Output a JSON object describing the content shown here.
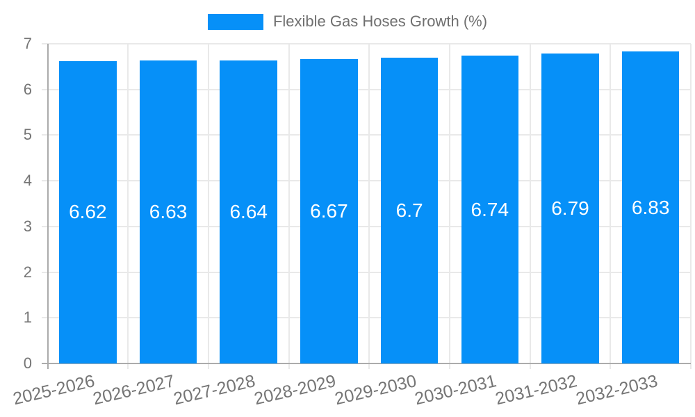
{
  "chart_data": {
    "type": "bar",
    "title": "Flexible Gas Hoses Growth (%)",
    "categories": [
      "2025-2026",
      "2026-2027",
      "2027-2028",
      "2028-2029",
      "2029-2030",
      "2030-2031",
      "2031-2032",
      "2032-2033"
    ],
    "values": [
      6.62,
      6.63,
      6.64,
      6.67,
      6.7,
      6.74,
      6.79,
      6.83
    ],
    "value_labels": [
      "6.62",
      "6.63",
      "6.64",
      "6.67",
      "6.7",
      "6.74",
      "6.79",
      "6.83"
    ],
    "xlabel": "",
    "ylabel": "",
    "ylim": [
      0,
      7
    ],
    "ytick_step": 1,
    "yticks": [
      "0",
      "1",
      "2",
      "3",
      "4",
      "5",
      "6",
      "7"
    ],
    "grid": true,
    "legend_position": "top",
    "colors": {
      "bar": "#0690F8",
      "grid": "#E9E9E9",
      "axis_line": "#ABABAB",
      "tick_text": "#757575",
      "legend_text": "#6F6F6F",
      "bar_label_text": "#FFFFFF",
      "background": "#FFFFFF"
    }
  }
}
